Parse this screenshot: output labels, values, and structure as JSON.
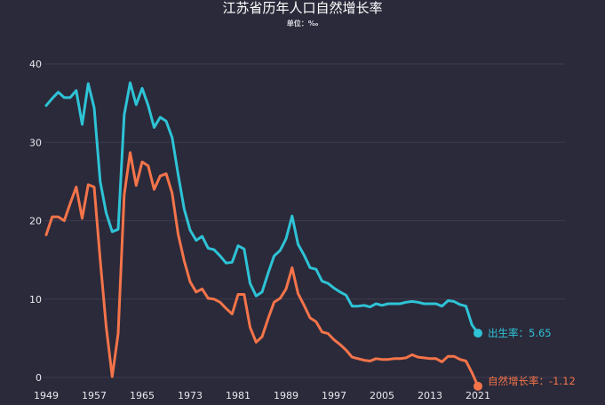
{
  "title": "江苏省历年人口自然增长率",
  "subtitle": "单位：‰",
  "colors": {
    "background": "#2b2a3a",
    "birth_rate": "#2ec3d6",
    "natural_growth": "#f4744a",
    "grid": "#3c3b4d",
    "tick_text": "#e8e8ee"
  },
  "end_labels": {
    "birth_rate": "出生率：5.65",
    "natural_growth": "自然增长率：-1.12"
  },
  "chart_data": {
    "type": "line",
    "title": "江苏省历年人口自然增长率",
    "subtitle": "单位：‰",
    "xlabel": "",
    "ylabel": "‰",
    "ylim": [
      0,
      40
    ],
    "yticks": [
      0,
      10,
      20,
      30,
      40
    ],
    "xticks": [
      "1949",
      "1957",
      "1965",
      "1973",
      "1981",
      "1989",
      "1997",
      "2005",
      "2013",
      "2021"
    ],
    "grid": true,
    "legend": "end-of-line labels",
    "x": [
      1949,
      1950,
      1951,
      1952,
      1953,
      1954,
      1955,
      1956,
      1957,
      1958,
      1959,
      1960,
      1961,
      1962,
      1963,
      1964,
      1965,
      1966,
      1967,
      1968,
      1969,
      1970,
      1971,
      1972,
      1973,
      1974,
      1975,
      1976,
      1977,
      1978,
      1979,
      1980,
      1981,
      1982,
      1983,
      1984,
      1985,
      1986,
      1987,
      1988,
      1989,
      1990,
      1991,
      1992,
      1993,
      1994,
      1995,
      1996,
      1997,
      1998,
      1999,
      2000,
      2001,
      2002,
      2003,
      2004,
      2005,
      2006,
      2007,
      2008,
      2009,
      2010,
      2011,
      2012,
      2013,
      2014,
      2015,
      2016,
      2017,
      2018,
      2019,
      2020,
      2021
    ],
    "series": [
      {
        "name": "出生率",
        "values": [
          34.7,
          35.6,
          36.4,
          35.7,
          35.7,
          36.6,
          32.3,
          37.5,
          34.4,
          25.0,
          21.0,
          18.6,
          18.9,
          33.5,
          37.6,
          34.8,
          36.9,
          34.7,
          31.9,
          33.2,
          32.7,
          30.6,
          25.9,
          21.5,
          18.8,
          17.5,
          18.0,
          16.5,
          16.3,
          15.5,
          14.6,
          14.7,
          16.8,
          16.4,
          12.0,
          10.4,
          10.9,
          13.3,
          15.5,
          16.2,
          17.7,
          20.6,
          17.0,
          15.6,
          14.0,
          13.8,
          12.3,
          12.0,
          11.4,
          10.9,
          10.5,
          9.1,
          9.1,
          9.2,
          9.0,
          9.4,
          9.2,
          9.4,
          9.4,
          9.4,
          9.6,
          9.7,
          9.6,
          9.4,
          9.4,
          9.4,
          9.1,
          9.8,
          9.7,
          9.3,
          9.1,
          6.7,
          5.65
        ]
      },
      {
        "name": "自然增长率",
        "values": [
          18.2,
          20.5,
          20.5,
          20.0,
          22.2,
          24.3,
          20.3,
          24.6,
          24.3,
          15.0,
          6.5,
          0.1,
          5.6,
          23.3,
          28.7,
          24.5,
          27.5,
          27.0,
          24.0,
          25.7,
          26.0,
          23.5,
          18.3,
          14.9,
          12.2,
          10.9,
          11.3,
          10.1,
          10.0,
          9.6,
          8.8,
          8.1,
          10.6,
          10.6,
          6.4,
          4.5,
          5.2,
          7.5,
          9.6,
          10.1,
          11.3,
          14.0,
          10.7,
          9.2,
          7.6,
          7.1,
          5.8,
          5.6,
          4.8,
          4.2,
          3.5,
          2.6,
          2.4,
          2.2,
          2.1,
          2.4,
          2.3,
          2.3,
          2.4,
          2.4,
          2.5,
          2.9,
          2.6,
          2.5,
          2.4,
          2.4,
          2.0,
          2.7,
          2.7,
          2.3,
          2.1,
          0.6,
          -1.12
        ]
      }
    ]
  }
}
